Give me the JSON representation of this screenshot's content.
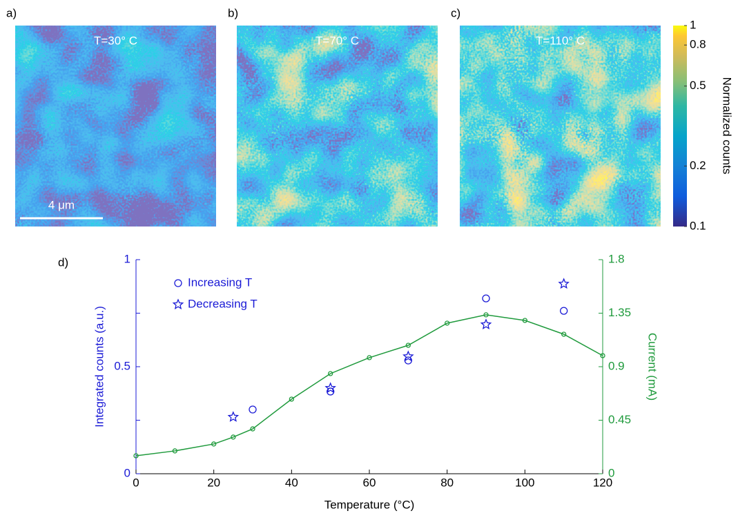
{
  "panels": [
    {
      "label": "a)",
      "title": "T=30° C"
    },
    {
      "label": "b)",
      "title": "T=70° C"
    },
    {
      "label": "c)",
      "title": "T=110° C"
    }
  ],
  "scale_bar": "4 μm",
  "colorbar": {
    "label": "Normalized counts",
    "lim": [
      0.1,
      1
    ],
    "ticks": [
      0.1,
      0.2,
      0.5,
      0.8,
      1
    ],
    "log": true
  },
  "chart_data": {
    "type": "scatter",
    "label": "d)",
    "xlabel": "Temperature (°C)",
    "ylabel": "Integrated counts (a.u.)",
    "y2label": "Current (mA)",
    "xlim": [
      0,
      120
    ],
    "xticks": [
      0,
      20,
      40,
      60,
      80,
      100,
      120
    ],
    "ylim": [
      0,
      1
    ],
    "yticks": [
      0,
      0.5,
      1
    ],
    "minor_yticks": [
      0.25,
      0.75
    ],
    "y2lim": [
      0,
      1.8
    ],
    "y2ticks": [
      0,
      0.45,
      0.9,
      1.35,
      1.8
    ],
    "y_color": "#1a1ad6",
    "y2_color": "#1f9a3c",
    "series": [
      {
        "name": "Increasing T",
        "marker": "circle",
        "color": "#1a1ad6",
        "x": [
          30,
          50,
          70,
          90,
          110
        ],
        "values": [
          0.3,
          0.384,
          0.529,
          0.819,
          0.761
        ]
      },
      {
        "name": "Decreasing T",
        "marker": "star",
        "color": "#1a1ad6",
        "x": [
          25,
          50,
          70,
          90,
          110
        ],
        "values": [
          0.265,
          0.4,
          0.548,
          0.697,
          0.887
        ]
      },
      {
        "type": "line",
        "axis": "y2",
        "marker": "circle",
        "color": "#1f9a3c",
        "x": [
          0,
          10,
          20,
          25,
          30,
          40,
          50,
          60,
          70,
          80,
          90,
          100,
          110,
          120
        ],
        "values": [
          0.151,
          0.192,
          0.25,
          0.308,
          0.377,
          0.627,
          0.842,
          0.976,
          1.08,
          1.266,
          1.336,
          1.289,
          1.173,
          0.993
        ]
      }
    ]
  }
}
